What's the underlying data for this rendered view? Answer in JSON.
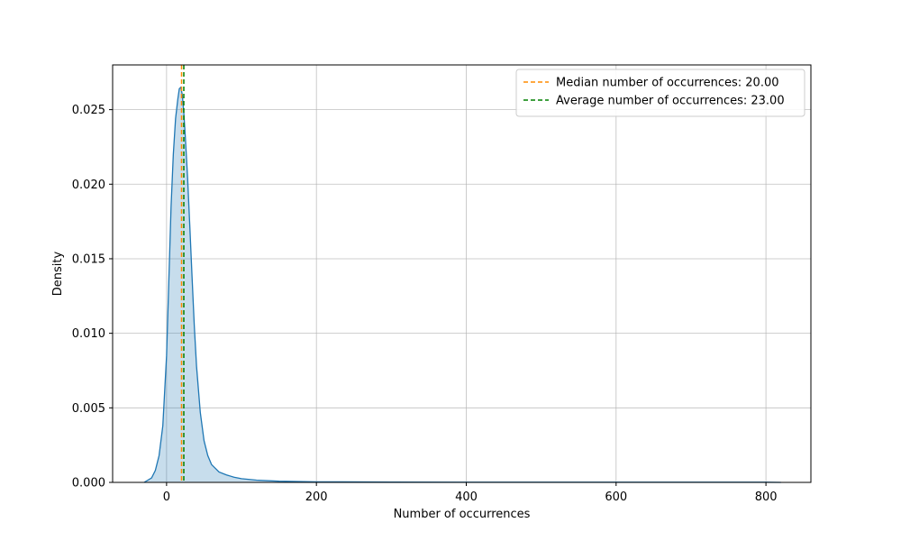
{
  "chart_data": {
    "type": "area",
    "title": "",
    "xlabel": "Number of occurrences",
    "ylabel": "Density",
    "xlim": [
      -72,
      860
    ],
    "ylim": [
      0,
      0.028
    ],
    "x_ticks": [
      0,
      200,
      400,
      600,
      800
    ],
    "x_tick_labels": [
      "0",
      "200",
      "400",
      "600",
      "800"
    ],
    "y_ticks": [
      0,
      0.005,
      0.01,
      0.015,
      0.02,
      0.025
    ],
    "y_tick_labels": [
      "0.000",
      "0.005",
      "0.010",
      "0.015",
      "0.020",
      "0.025"
    ],
    "grid": true,
    "legend_position": "top-right",
    "series": [
      {
        "kind": "kde",
        "color": "#1f77b4",
        "fill_color": "#1f77b4",
        "fill_opacity": 0.25,
        "x": [
          -30,
          -20,
          -15,
          -10,
          -5,
          0,
          3,
          6,
          9,
          12,
          15,
          17,
          19,
          21,
          23,
          25,
          28,
          31,
          34,
          37,
          40,
          45,
          50,
          55,
          60,
          70,
          80,
          90,
          100,
          120,
          150,
          200,
          300,
          400,
          500,
          600,
          700,
          800,
          820
        ],
        "y": [
          0.0,
          0.0003,
          0.0008,
          0.0018,
          0.0038,
          0.0085,
          0.0135,
          0.0185,
          0.022,
          0.0244,
          0.0257,
          0.0264,
          0.0265,
          0.026,
          0.0248,
          0.0232,
          0.0205,
          0.0172,
          0.0138,
          0.0105,
          0.0078,
          0.0047,
          0.0028,
          0.0018,
          0.0012,
          0.0007,
          0.0005,
          0.00035,
          0.00025,
          0.00015,
          8e-05,
          4e-05,
          2e-05,
          1e-05,
          1e-05,
          1e-05,
          1e-05,
          1e-05,
          0.0
        ]
      }
    ],
    "vlines": [
      {
        "name": "Median number of occurrences: 20.00",
        "x": 20.0,
        "color": "#ff8c00",
        "style": "dashed"
      },
      {
        "name": "Average number of occurrences: 23.00",
        "x": 23.0,
        "color": "#008000",
        "style": "dashed"
      }
    ]
  }
}
